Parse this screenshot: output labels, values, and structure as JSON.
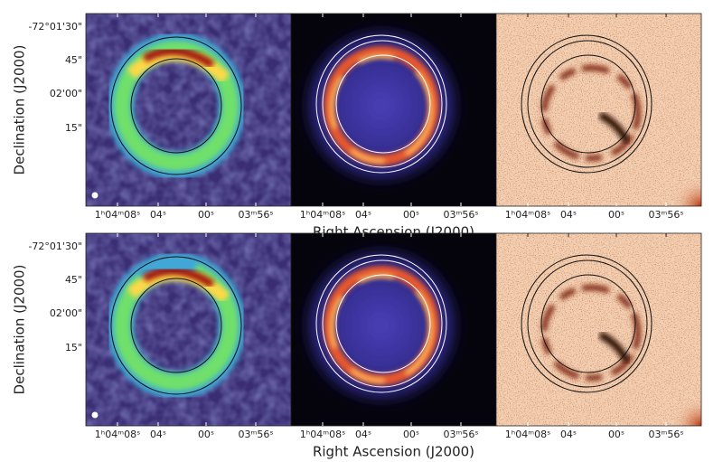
{
  "rows": [
    {
      "y_label": "Declination (J2000)",
      "y_ticks": [
        "-72°01'30\"",
        "45\"",
        "02'00\"",
        "15\""
      ],
      "x_label": "Right Ascension (J2000)",
      "x_ticks": [
        "1ʰ04ᵐ08ˢ",
        "04ˢ",
        "00ˢ",
        "03ᵐ56ˢ"
      ]
    },
    {
      "y_label": "Declination (J2000)",
      "y_ticks": [
        "-72°01'30\"",
        "45\"",
        "02'00\"",
        "15\""
      ],
      "x_label": "Right Ascension (J2000)",
      "x_ticks": [
        "1ʰ04ᵐ08ˢ",
        "04ˢ",
        "00ˢ",
        "03ᵐ56ˢ"
      ]
    }
  ]
}
